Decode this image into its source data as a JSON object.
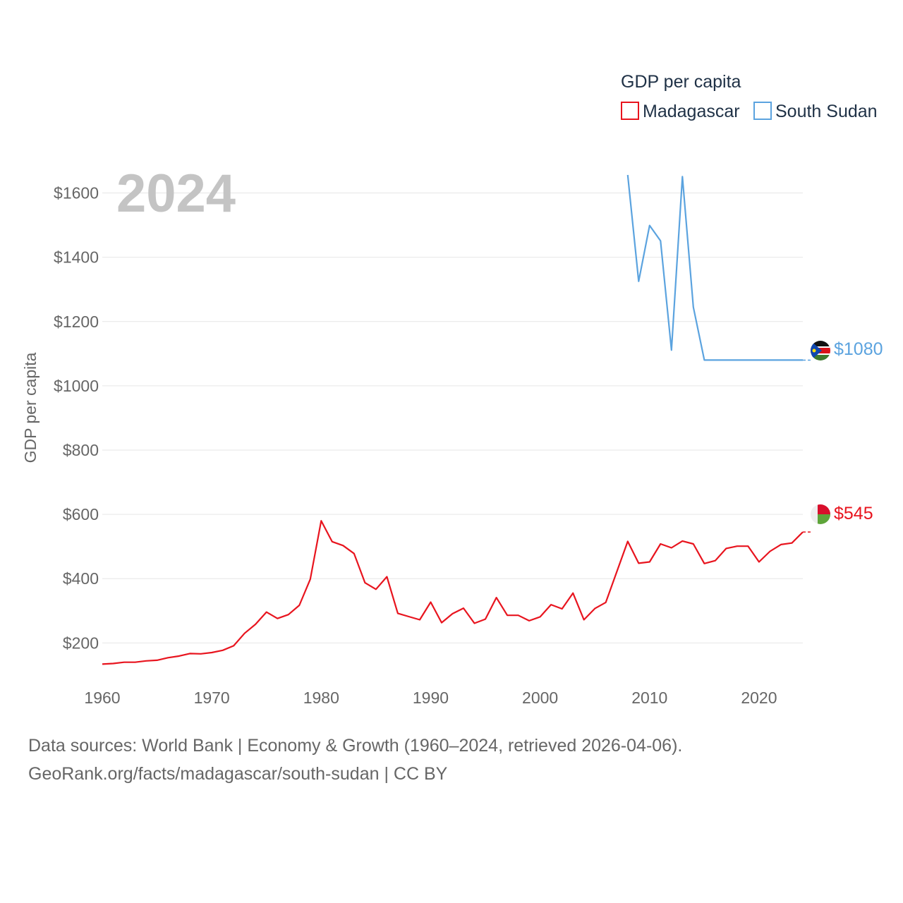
{
  "chart_data": {
    "type": "line",
    "year_label": "2024",
    "legend_title": "GDP per capita",
    "ylabel": "GDP per capita",
    "xlabel": "",
    "xlim": [
      1960,
      2024
    ],
    "ylim": [
      80,
      1700
    ],
    "y_ticks": [
      200,
      400,
      600,
      800,
      1000,
      1200,
      1400,
      1600
    ],
    "y_tick_labels": [
      "$200",
      "$400",
      "$600",
      "$800",
      "$1000",
      "$1200",
      "$1400",
      "$1600"
    ],
    "x_ticks": [
      1960,
      1970,
      1980,
      1990,
      2000,
      2010,
      2020
    ],
    "x_tick_labels": [
      "1960",
      "1970",
      "1980",
      "1990",
      "2000",
      "2010",
      "2020"
    ],
    "series": [
      {
        "name": "Madagascar",
        "color": "#e8141e",
        "end_label": "$545",
        "x": [
          1960,
          1961,
          1962,
          1963,
          1964,
          1965,
          1966,
          1967,
          1968,
          1969,
          1970,
          1971,
          1972,
          1973,
          1974,
          1975,
          1976,
          1977,
          1978,
          1979,
          1980,
          1981,
          1982,
          1983,
          1984,
          1985,
          1986,
          1987,
          1988,
          1989,
          1990,
          1991,
          1992,
          1993,
          1994,
          1995,
          1996,
          1997,
          1998,
          1999,
          2000,
          2001,
          2002,
          2003,
          2004,
          2005,
          2006,
          2007,
          2008,
          2009,
          2010,
          2011,
          2012,
          2013,
          2014,
          2015,
          2016,
          2017,
          2018,
          2019,
          2020,
          2021,
          2022,
          2023,
          2024
        ],
        "values": [
          134,
          136,
          140,
          140,
          144,
          146,
          154,
          159,
          167,
          166,
          170,
          177,
          191,
          230,
          258,
          296,
          276,
          288,
          317,
          398,
          580,
          515,
          503,
          478,
          387,
          367,
          406,
          292,
          282,
          272,
          327,
          263,
          291,
          308,
          261,
          274,
          341,
          286,
          286,
          269,
          281,
          319,
          306,
          355,
          272,
          307,
          326,
          421,
          516,
          448,
          452,
          508,
          496,
          517,
          508,
          447,
          456,
          494,
          501,
          501,
          452,
          485,
          506,
          511,
          545
        ]
      },
      {
        "name": "South Sudan",
        "color": "#5ba3df",
        "end_label": "$1080",
        "x": [
          2008,
          2009,
          2010,
          2011,
          2012,
          2013,
          2014,
          2015,
          2016,
          2017,
          2018,
          2019,
          2020,
          2021,
          2022,
          2023,
          2024
        ],
        "values": [
          1656,
          1325,
          1499,
          1451,
          1111,
          1651,
          1245,
          1080,
          1080,
          1080,
          1080,
          1080,
          1080,
          1080,
          1080,
          1080,
          1080
        ]
      }
    ]
  },
  "footer": {
    "line1": "Data sources: World Bank | Economy & Growth (1960–2024, retrieved 2026-04-06).",
    "line2": "GeoRank.org/facts/madagascar/south-sudan | CC BY"
  }
}
